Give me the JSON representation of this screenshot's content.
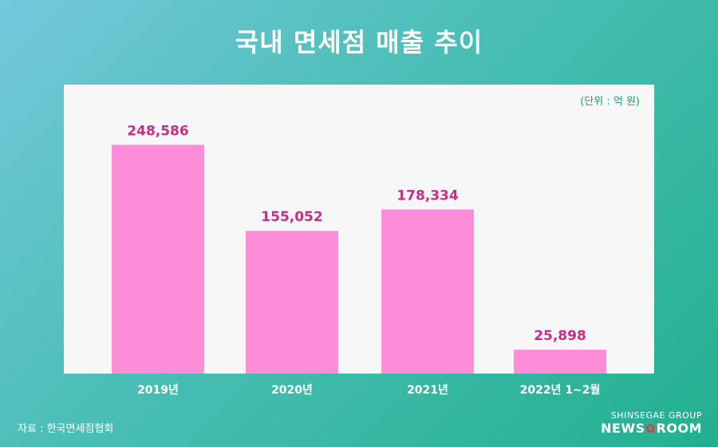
{
  "title": "국내 면세점 매출 추이",
  "unit_label": "(단위 : 억 원)",
  "source": "자료 : 한국면세점협회",
  "brand": {
    "group": "SHINSEGAE GROUP",
    "news_left": "NEWS",
    "news_right": "ROOM",
    "star_icon": "flower-star-icon"
  },
  "colors": {
    "bar": "#fd8dd9",
    "value_label": "#c72c8c",
    "category_label": "#ffffff",
    "accent": "#1a9e7d"
  },
  "chart_data": {
    "type": "bar",
    "title": "국내 면세점 매출 추이",
    "unit": "(단위 : 억 원)",
    "categories": [
      "2019년",
      "2020년",
      "2021년",
      "2022년 1~2월"
    ],
    "values": [
      248586,
      155052,
      178334,
      25898
    ],
    "value_labels": [
      "248,586",
      "155,052",
      "178,334",
      "25,898"
    ],
    "grid": false
  }
}
